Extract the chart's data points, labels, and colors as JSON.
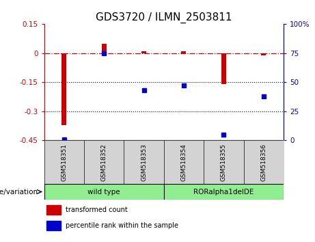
{
  "title": "GDS3720 / ILMN_2503811",
  "samples": [
    "GSM518351",
    "GSM518352",
    "GSM518353",
    "GSM518354",
    "GSM518355",
    "GSM518356"
  ],
  "group_labels": [
    "wild type",
    "RORalpha1delDE"
  ],
  "red_values": [
    -0.37,
    0.05,
    0.01,
    0.01,
    -0.16,
    -0.01
  ],
  "blue_values_pct": [
    1,
    75,
    43,
    47,
    5,
    38
  ],
  "ylim_left": [
    -0.45,
    0.15
  ],
  "ylim_right": [
    0,
    100
  ],
  "yticks_left": [
    0.15,
    0,
    -0.15,
    -0.3,
    -0.45
  ],
  "yticks_right": [
    100,
    75,
    50,
    25,
    0
  ],
  "hline_red": 0,
  "hline_dotted_vals": [
    -0.15,
    -0.3
  ],
  "bar_width": 0.12,
  "red_color": "#cc0000",
  "blue_color": "#0000cc",
  "legend_labels": [
    "transformed count",
    "percentile rank within the sample"
  ],
  "xlabel_group": "genotype/variation",
  "gray_bg": "#d3d3d3",
  "green_bg": "#90EE90",
  "title_fontsize": 11,
  "tick_fontsize": 7.5,
  "label_fontsize": 7.5
}
